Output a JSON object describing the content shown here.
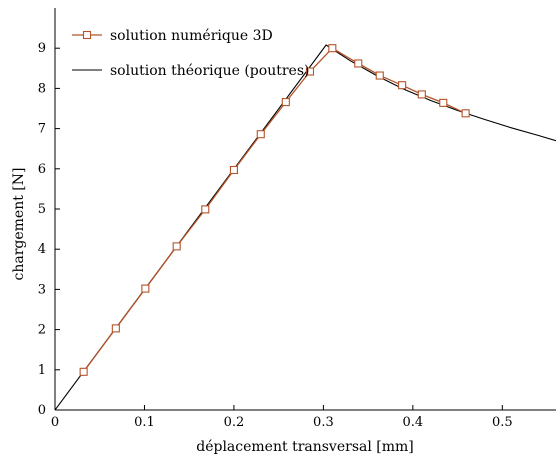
{
  "chart_data": {
    "type": "line",
    "xlabel": "déplacement transversal [mm]",
    "ylabel": "chargement [N]",
    "xlim": [
      0,
      0.56
    ],
    "ylim": [
      0,
      10
    ],
    "grid": false,
    "legend_position": "top-left",
    "x_ticks": [
      "0",
      "0.1",
      "0.2",
      "0.3",
      "0.4",
      "0.5"
    ],
    "y_ticks": [
      "0",
      "1",
      "2",
      "3",
      "4",
      "5",
      "6",
      "7",
      "8",
      "9"
    ],
    "series": [
      {
        "name": "solution numérique 3D",
        "color": "#b5532a",
        "marker": "square",
        "x": [
          0.032,
          0.068,
          0.101,
          0.136,
          0.168,
          0.2,
          0.23,
          0.258,
          0.285,
          0.31,
          0.339,
          0.363,
          0.388,
          0.41,
          0.434,
          0.459
        ],
        "y": [
          0.95,
          2.03,
          3.02,
          4.07,
          4.99,
          5.97,
          6.86,
          7.66,
          8.42,
          9.0,
          8.62,
          8.32,
          8.08,
          7.85,
          7.64,
          7.38
        ]
      },
      {
        "name": "solution théorique (poutres)",
        "color": "#000000",
        "marker": "none",
        "x": [
          0.0,
          0.303,
          0.33,
          0.36,
          0.39,
          0.42,
          0.45,
          0.48,
          0.51,
          0.54,
          0.56
        ],
        "y": [
          0.0,
          9.08,
          8.69,
          8.31,
          7.98,
          7.7,
          7.45,
          7.23,
          7.02,
          6.83,
          6.7
        ]
      }
    ]
  }
}
